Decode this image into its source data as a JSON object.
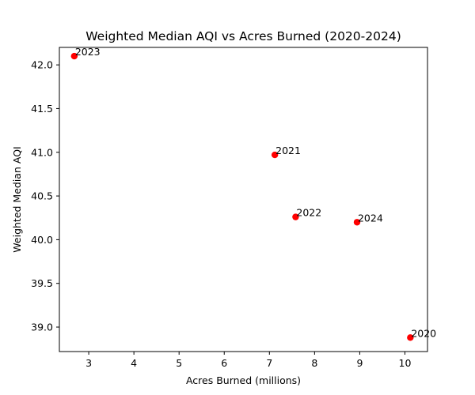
{
  "chart_data": {
    "type": "scatter",
    "title": "Weighted Median AQI vs Acres Burned (2020-2024)",
    "xlabel": "Acres Burned (millions)",
    "ylabel": "Weighted Median AQI",
    "xlim": [
      2.35,
      10.5
    ],
    "ylim": [
      38.72,
      42.2
    ],
    "xticks": [
      3,
      4,
      5,
      6,
      7,
      8,
      9,
      10
    ],
    "yticks": [
      39.0,
      39.5,
      40.0,
      40.5,
      41.0,
      41.5,
      42.0
    ],
    "ytick_labels": [
      "39.0",
      "39.5",
      "40.0",
      "40.5",
      "41.0",
      "41.5",
      "42.0"
    ],
    "grid": false,
    "legend": "none",
    "marker_color": "#ff0000",
    "points": [
      {
        "label": "2020",
        "x": 10.12,
        "y": 38.88
      },
      {
        "label": "2021",
        "x": 7.12,
        "y": 40.97
      },
      {
        "label": "2022",
        "x": 7.58,
        "y": 40.26
      },
      {
        "label": "2023",
        "x": 2.68,
        "y": 42.1
      },
      {
        "label": "2024",
        "x": 8.94,
        "y": 40.2
      }
    ]
  }
}
